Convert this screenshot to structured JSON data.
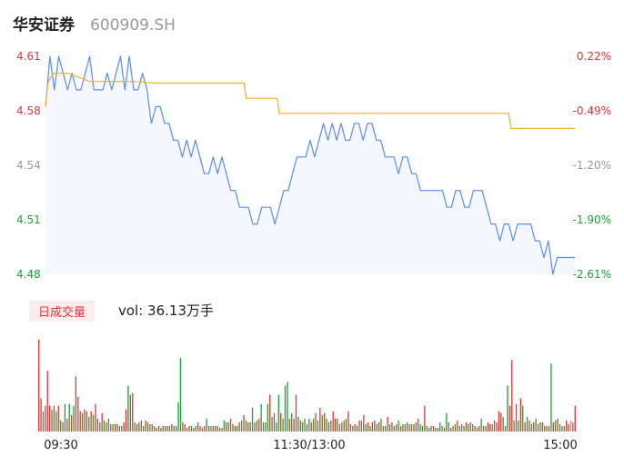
{
  "header": {
    "name": "华安证券",
    "code": "600909.SH"
  },
  "volume_panel": {
    "tab_label": "日成交量",
    "vol_label": "vol: 36.13万手"
  },
  "colors": {
    "price_line": "#5b8def",
    "avg_line": "#f5b323",
    "up": "#e0383b",
    "down": "#1aa33b",
    "neutral": "#999999"
  },
  "chart_data": [
    {
      "type": "line",
      "title": "",
      "y_ticks_left": [
        "4.61",
        "4.58",
        "4.54",
        "4.51",
        "4.48"
      ],
      "y_ticks_right": [
        "0.22%",
        "-0.49%",
        "-1.20%",
        "-1.90%",
        "-2.61%"
      ],
      "ylim": [
        4.48,
        4.61
      ],
      "xlim": [
        0,
        240
      ],
      "series": [
        {
          "type": "line",
          "x": [
            0,
            2,
            4,
            6,
            8,
            10,
            12,
            14,
            16,
            18,
            20,
            22,
            24,
            26,
            28,
            30,
            32,
            34,
            36,
            38,
            40,
            42,
            44,
            46,
            48,
            50,
            52,
            54,
            56,
            58,
            60,
            62,
            64,
            66,
            68,
            70,
            72,
            74,
            76,
            78,
            80,
            82,
            84,
            86,
            88,
            90,
            92,
            94,
            96,
            98,
            100,
            102,
            104,
            106,
            108,
            110,
            112,
            114,
            116,
            118,
            120,
            122,
            124,
            126,
            128,
            130,
            132,
            134,
            136,
            138,
            140,
            142,
            144,
            146,
            148,
            150,
            152,
            154,
            156,
            158,
            160,
            162,
            164,
            166,
            168,
            170,
            172,
            174,
            176,
            178,
            180,
            182,
            184,
            186,
            188,
            190,
            192,
            194,
            196,
            198,
            200,
            202,
            204,
            206,
            208,
            210,
            212,
            214,
            216,
            218,
            220,
            222,
            224,
            226,
            228,
            230,
            232,
            234,
            236,
            238,
            240
          ],
          "y": [
            4.58,
            4.61,
            4.59,
            4.61,
            4.6,
            4.59,
            4.6,
            4.59,
            4.59,
            4.6,
            4.61,
            4.59,
            4.59,
            4.59,
            4.6,
            4.59,
            4.6,
            4.61,
            4.59,
            4.61,
            4.59,
            4.59,
            4.6,
            4.59,
            4.57,
            4.58,
            4.58,
            4.57,
            4.57,
            4.56,
            4.56,
            4.55,
            4.56,
            4.55,
            4.56,
            4.55,
            4.54,
            4.54,
            4.55,
            4.54,
            4.55,
            4.54,
            4.53,
            4.53,
            4.52,
            4.52,
            4.52,
            4.51,
            4.51,
            4.52,
            4.52,
            4.52,
            4.51,
            4.52,
            4.53,
            4.53,
            4.54,
            4.55,
            4.55,
            4.55,
            4.56,
            4.55,
            4.56,
            4.57,
            4.56,
            4.57,
            4.56,
            4.57,
            4.56,
            4.56,
            4.57,
            4.57,
            4.56,
            4.57,
            4.57,
            4.56,
            4.56,
            4.55,
            4.55,
            4.55,
            4.54,
            4.55,
            4.55,
            4.54,
            4.54,
            4.53,
            4.53,
            4.53,
            4.53,
            4.53,
            4.53,
            4.52,
            4.52,
            4.53,
            4.53,
            4.52,
            4.52,
            4.53,
            4.53,
            4.53,
            4.52,
            4.51,
            4.51,
            4.5,
            4.51,
            4.51,
            4.5,
            4.51,
            4.51,
            4.51,
            4.51,
            4.5,
            4.5,
            4.49,
            4.5,
            4.48,
            4.49,
            4.49,
            4.49,
            4.49,
            4.49
          ]
        },
        {
          "type": "line",
          "x": [
            0,
            1,
            2,
            4,
            6,
            10,
            20,
            21,
            30,
            40,
            50,
            60,
            70,
            80,
            90,
            91,
            100,
            105,
            106,
            120,
            140,
            160,
            180,
            200,
            210,
            211,
            220,
            230,
            240
          ],
          "y": [
            4.58,
            4.593,
            4.597,
            4.6,
            4.6,
            4.6,
            4.595,
            4.595,
            4.595,
            4.595,
            4.594,
            4.594,
            4.594,
            4.594,
            4.594,
            4.585,
            4.585,
            4.585,
            4.576,
            4.576,
            4.576,
            4.576,
            4.576,
            4.576,
            4.576,
            4.567,
            4.567,
            4.567,
            4.567
          ]
        }
      ]
    },
    {
      "type": "bar",
      "title": "",
      "x_ticks": [
        "09:30",
        "11:30/13:00",
        "15:00"
      ],
      "ylim": [
        0,
        1
      ],
      "values": [
        1.0,
        0.36,
        0.22,
        0.28,
        0.66,
        0.28,
        0.24,
        0.28,
        0.22,
        0.28,
        0.12,
        0.1,
        0.3,
        0.14,
        0.3,
        0.18,
        0.28,
        0.6,
        0.38,
        0.22,
        0.2,
        0.24,
        0.22,
        0.16,
        0.22,
        0.18,
        0.3,
        0.14,
        0.1,
        0.2,
        0.12,
        0.1,
        0.14,
        0.08,
        0.08,
        0.08,
        0.08,
        0.06,
        0.06,
        0.1,
        0.24,
        0.5,
        0.4,
        0.42,
        0.1,
        0.08,
        0.1,
        0.12,
        0.06,
        0.12,
        0.1,
        0.08,
        0.08,
        0.06,
        0.04,
        0.06,
        0.04,
        0.06,
        0.06,
        0.06,
        0.06,
        0.08,
        0.06,
        0.06,
        0.32,
        0.8,
        0.1,
        0.08,
        0.04,
        0.06,
        0.06,
        0.04,
        0.06,
        0.1,
        0.06,
        0.04,
        0.06,
        0.14,
        0.06,
        0.06,
        0.06,
        0.06,
        0.06,
        0.04,
        0.04,
        0.12,
        0.1,
        0.1,
        0.14,
        0.08,
        0.06,
        0.06,
        0.1,
        0.12,
        0.18,
        0.12,
        0.1,
        0.1,
        0.26,
        0.1,
        0.12,
        0.14,
        0.3,
        0.1,
        0.1,
        0.3,
        0.4,
        0.16,
        0.2,
        0.1,
        0.4,
        0.2,
        0.14,
        0.5,
        0.54,
        0.14,
        0.2,
        0.14,
        0.4,
        0.16,
        0.12,
        0.1,
        0.14,
        0.08,
        0.14,
        0.1,
        0.14,
        0.2,
        0.12,
        0.26,
        0.18,
        0.2,
        0.14,
        0.1,
        0.12,
        0.22,
        0.14,
        0.14,
        0.08,
        0.1,
        0.12,
        0.14,
        0.22,
        0.08,
        0.06,
        0.08,
        0.06,
        0.12,
        0.12,
        0.18,
        0.08,
        0.1,
        0.06,
        0.1,
        0.12,
        0.08,
        0.1,
        0.14,
        0.06,
        0.06,
        0.16,
        0.08,
        0.1,
        0.06,
        0.08,
        0.12,
        0.06,
        0.08,
        0.08,
        0.1,
        0.08,
        0.08,
        0.08,
        0.1,
        0.14,
        0.08,
        0.06,
        0.28,
        0.06,
        0.04,
        0.06,
        0.06,
        0.04,
        0.04,
        0.1,
        0.06,
        0.04,
        0.2,
        0.1,
        0.04,
        0.06,
        0.08,
        0.12,
        0.06,
        0.08,
        0.06,
        0.1,
        0.08,
        0.1,
        0.08,
        0.06,
        0.04,
        0.06,
        0.14,
        0.06,
        0.06,
        0.1,
        0.08,
        0.08,
        0.12,
        0.1,
        0.22,
        0.2,
        0.16,
        0.06,
        0.5,
        0.28,
        0.78,
        0.12,
        0.3,
        0.12,
        0.36,
        0.28,
        0.1,
        0.16,
        0.12,
        0.08,
        0.1,
        0.14,
        0.08,
        0.1,
        0.1,
        0.06,
        0.06,
        0.06,
        0.74,
        0.1,
        0.12,
        0.14,
        0.08,
        0.06,
        0.06,
        0.12,
        0.08,
        0.12,
        0.1,
        0.28
      ],
      "colors": [
        "up",
        "up",
        "down",
        "up",
        "up",
        "up",
        "down",
        "up",
        "down",
        "up",
        "down",
        "up",
        "down",
        "up",
        "down",
        "up",
        "down",
        "up",
        "up",
        "up",
        "down",
        "up",
        "up",
        "down",
        "up",
        "down",
        "up",
        "up",
        "down",
        "up",
        "down",
        "up",
        "down",
        "up",
        "down",
        "up",
        "down",
        "up",
        "down",
        "up",
        "up",
        "down",
        "up",
        "up",
        "down",
        "up",
        "down",
        "up",
        "down",
        "up",
        "down",
        "up",
        "down",
        "up",
        "down",
        "up",
        "down",
        "up",
        "down",
        "up",
        "down",
        "up",
        "down",
        "up",
        "down",
        "down",
        "up",
        "up",
        "down",
        "up",
        "down",
        "up",
        "down",
        "up",
        "up",
        "down",
        "up",
        "down",
        "up",
        "down",
        "up",
        "down",
        "up",
        "down",
        "up",
        "down",
        "up",
        "down",
        "up",
        "down",
        "up",
        "down",
        "up",
        "down",
        "up",
        "down",
        "up",
        "down",
        "down",
        "up",
        "down",
        "up",
        "down",
        "up",
        "down",
        "down",
        "up",
        "down",
        "up",
        "down",
        "down",
        "up",
        "down",
        "down",
        "down",
        "up",
        "down",
        "up",
        "up",
        "down",
        "up",
        "down",
        "down",
        "up",
        "down",
        "up",
        "down",
        "up",
        "down",
        "up",
        "down",
        "up",
        "down",
        "up",
        "down",
        "up",
        "up",
        "down",
        "up",
        "down",
        "up",
        "down",
        "up",
        "up",
        "down",
        "up",
        "down",
        "up",
        "down",
        "up",
        "down",
        "up",
        "down",
        "up",
        "up",
        "down",
        "up",
        "down",
        "up",
        "down",
        "up",
        "down",
        "up",
        "down",
        "up",
        "down",
        "up",
        "down",
        "up",
        "down",
        "up",
        "down",
        "up",
        "down",
        "up",
        "down",
        "down",
        "up",
        "down",
        "up",
        "down",
        "up",
        "down",
        "up",
        "down",
        "down",
        "up",
        "down",
        "up",
        "down",
        "up",
        "down",
        "up",
        "down",
        "up",
        "down",
        "up",
        "down",
        "up",
        "down",
        "up",
        "down",
        "up",
        "down",
        "up",
        "down",
        "up",
        "up",
        "down",
        "up",
        "up",
        "up",
        "up",
        "down",
        "up",
        "down",
        "up",
        "up",
        "down",
        "up",
        "down",
        "up",
        "down",
        "up",
        "down",
        "up",
        "down",
        "up",
        "down",
        "up",
        "down",
        "up",
        "down",
        "up",
        "up",
        "down",
        "up",
        "down",
        "up",
        "down",
        "up",
        "down",
        "up",
        "up",
        "neutral"
      ]
    }
  ]
}
